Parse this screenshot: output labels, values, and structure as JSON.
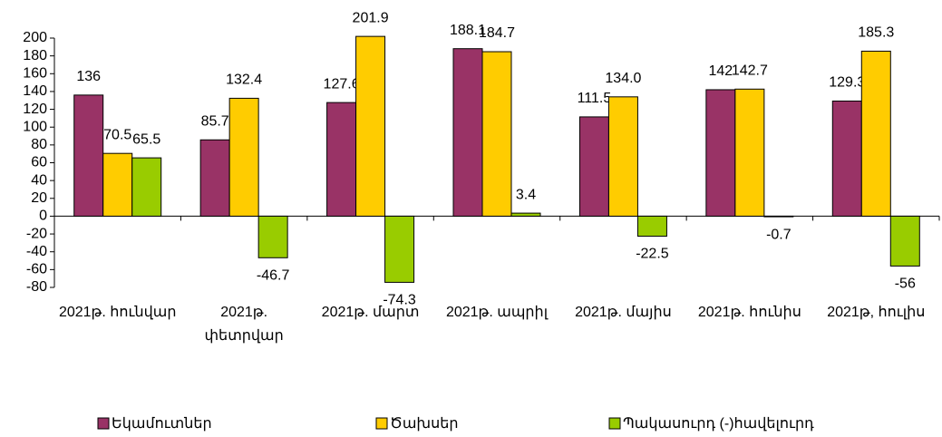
{
  "chart_data": {
    "type": "bar",
    "categories": [
      "2021թ. հունվար",
      "2021թ. փետրվար",
      "2021թ. մարտ",
      "2021թ. ապրիլ",
      "2021թ. մայիս",
      "2021թ. հունիս",
      "2021թ, հուլիս"
    ],
    "series": [
      {
        "name": "Եկամուտներ",
        "color": "#993366",
        "values": [
          136,
          85.7,
          127.6,
          188.1,
          111.5,
          142,
          129.3
        ]
      },
      {
        "name": "Ծախսեր",
        "color": "#ffcc00",
        "values": [
          70.5,
          132.4,
          201.9,
          184.7,
          134.0,
          142.7,
          185.3
        ],
        "value_labels": [
          "70.5",
          "132.4",
          "201.9",
          "184.7",
          "134.0",
          "142.7",
          "185.3"
        ]
      },
      {
        "name": "Պակասուրդ (-)հավելուրդ",
        "color": "#99cc00",
        "values": [
          65.5,
          -46.7,
          -74.3,
          3.4,
          -22.5,
          -0.7,
          -56
        ]
      }
    ],
    "ylim": [
      -80,
      200
    ],
    "yticks": [
      -80,
      -60,
      -40,
      -20,
      0,
      20,
      40,
      60,
      80,
      100,
      120,
      140,
      160,
      180,
      200
    ],
    "legend": "bottom"
  }
}
